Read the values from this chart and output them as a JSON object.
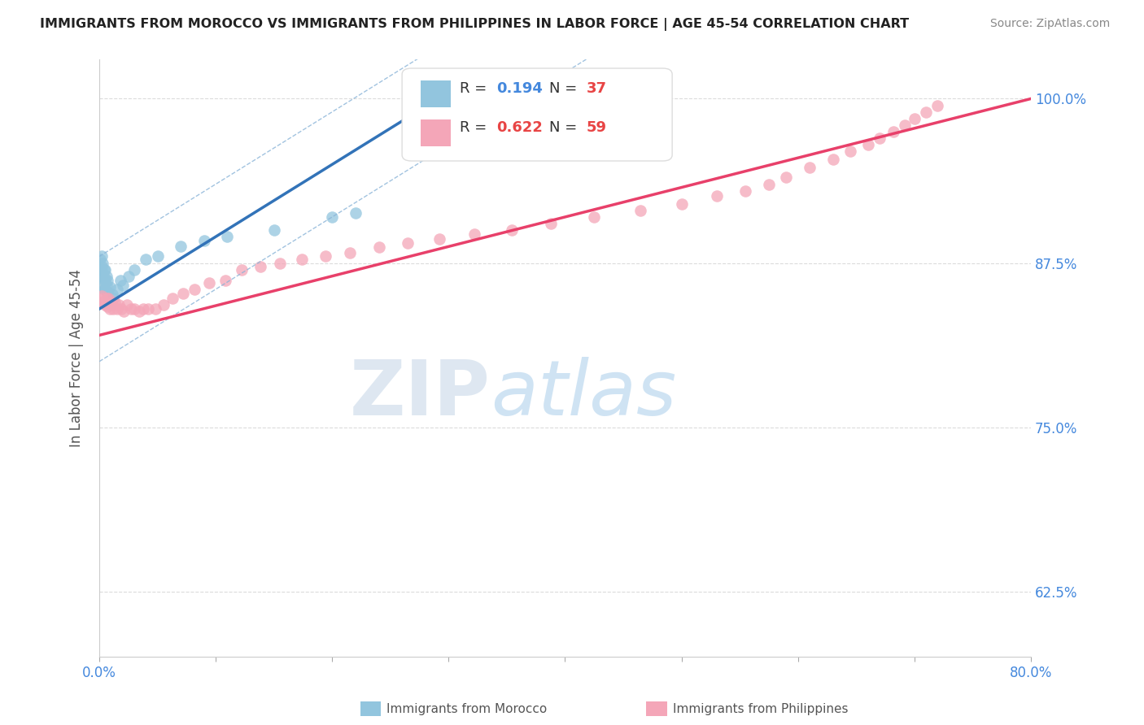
{
  "title": "IMMIGRANTS FROM MOROCCO VS IMMIGRANTS FROM PHILIPPINES IN LABOR FORCE | AGE 45-54 CORRELATION CHART",
  "source": "Source: ZipAtlas.com",
  "ylabel": "In Labor Force | Age 45-54",
  "xlim": [
    0.0,
    0.8
  ],
  "ylim": [
    0.575,
    1.03
  ],
  "xticks": [
    0.0,
    0.1,
    0.2,
    0.3,
    0.4,
    0.5,
    0.6,
    0.7,
    0.8
  ],
  "xticklabels": [
    "0.0%",
    "",
    "",
    "",
    "",
    "",
    "",
    "",
    "80.0%"
  ],
  "ytick_positions": [
    0.625,
    0.75,
    0.875,
    1.0
  ],
  "ytick_labels": [
    "62.5%",
    "75.0%",
    "87.5%",
    "100.0%"
  ],
  "morocco_R": 0.194,
  "morocco_N": 37,
  "philippines_R": 0.622,
  "philippines_N": 59,
  "morocco_color": "#92c5de",
  "philippines_color": "#f4a6b8",
  "morocco_line_color": "#3273b8",
  "philippines_line_color": "#e8406a",
  "ci_color": "#8ab4d8",
  "morocco_x": [
    0.001,
    0.001,
    0.002,
    0.002,
    0.002,
    0.003,
    0.003,
    0.003,
    0.004,
    0.004,
    0.004,
    0.005,
    0.005,
    0.005,
    0.006,
    0.006,
    0.007,
    0.007,
    0.008,
    0.009,
    0.01,
    0.011,
    0.012,
    0.015,
    0.018,
    0.02,
    0.025,
    0.03,
    0.04,
    0.05,
    0.07,
    0.09,
    0.11,
    0.15,
    0.2,
    0.22,
    0.295
  ],
  "morocco_y": [
    0.87,
    0.878,
    0.865,
    0.872,
    0.88,
    0.858,
    0.868,
    0.875,
    0.855,
    0.862,
    0.87,
    0.855,
    0.863,
    0.87,
    0.858,
    0.865,
    0.853,
    0.862,
    0.848,
    0.857,
    0.843,
    0.851,
    0.848,
    0.855,
    0.862,
    0.858,
    0.865,
    0.87,
    0.878,
    0.88,
    0.888,
    0.892,
    0.895,
    0.9,
    0.91,
    0.913,
    0.995
  ],
  "philippines_x": [
    0.001,
    0.002,
    0.003,
    0.004,
    0.005,
    0.006,
    0.007,
    0.008,
    0.009,
    0.01,
    0.011,
    0.012,
    0.013,
    0.015,
    0.017,
    0.019,
    0.021,
    0.024,
    0.027,
    0.03,
    0.034,
    0.038,
    0.042,
    0.048,
    0.055,
    0.063,
    0.072,
    0.082,
    0.094,
    0.108,
    0.122,
    0.138,
    0.155,
    0.174,
    0.194,
    0.215,
    0.24,
    0.265,
    0.292,
    0.322,
    0.354,
    0.388,
    0.425,
    0.465,
    0.5,
    0.53,
    0.555,
    0.575,
    0.59,
    0.61,
    0.63,
    0.645,
    0.66,
    0.67,
    0.682,
    0.692,
    0.7,
    0.71,
    0.72
  ],
  "philippines_y": [
    0.845,
    0.85,
    0.848,
    0.845,
    0.843,
    0.848,
    0.842,
    0.848,
    0.84,
    0.845,
    0.843,
    0.84,
    0.845,
    0.84,
    0.843,
    0.84,
    0.838,
    0.843,
    0.84,
    0.84,
    0.838,
    0.84,
    0.84,
    0.84,
    0.843,
    0.848,
    0.852,
    0.855,
    0.86,
    0.862,
    0.87,
    0.872,
    0.875,
    0.878,
    0.88,
    0.883,
    0.887,
    0.89,
    0.893,
    0.897,
    0.9,
    0.905,
    0.91,
    0.915,
    0.92,
    0.926,
    0.93,
    0.935,
    0.94,
    0.948,
    0.954,
    0.96,
    0.965,
    0.97,
    0.975,
    0.98,
    0.985,
    0.99,
    0.995
  ],
  "watermark_zip": "ZIP",
  "watermark_atlas": "atlas",
  "background_color": "#ffffff",
  "grid_color": "#cccccc",
  "morocco_line_x0": 0.0,
  "morocco_line_y0": 0.84,
  "morocco_line_x1": 0.3,
  "morocco_line_y1": 1.005,
  "philippines_line_x0": 0.0,
  "philippines_line_y0": 0.82,
  "philippines_line_x1": 0.8,
  "philippines_line_y1": 1.0
}
